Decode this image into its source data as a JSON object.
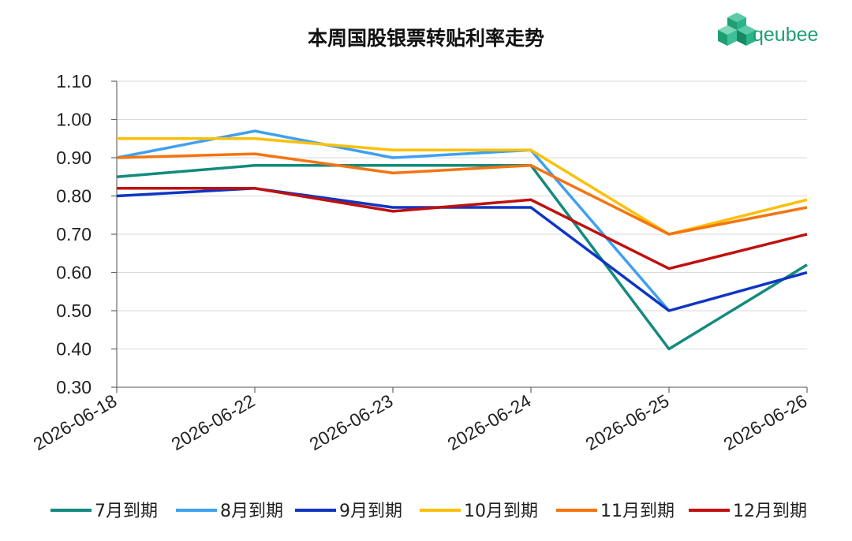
{
  "logo": {
    "text": "qeubee",
    "color": "#1f9e74"
  },
  "chart_data": {
    "type": "line",
    "title": "本周国股银票转贴利率走势",
    "xlabel": "",
    "ylabel": "",
    "categories": [
      "2026-06-18",
      "2026-06-22",
      "2026-06-23",
      "2026-06-24",
      "2026-06-25",
      "2026-06-26"
    ],
    "ylim": [
      0.3,
      1.1
    ],
    "yticks": [
      "0.30",
      "0.40",
      "0.50",
      "0.60",
      "0.70",
      "0.80",
      "0.90",
      "1.00",
      "1.10"
    ],
    "grid": true,
    "legend_position": "bottom",
    "series": [
      {
        "name": "7月到期",
        "color": "#138a7e",
        "values": [
          0.85,
          0.88,
          0.88,
          0.88,
          0.4,
          0.62
        ]
      },
      {
        "name": "8月到期",
        "color": "#3fa0f0",
        "values": [
          0.9,
          0.97,
          0.9,
          0.92,
          0.5,
          null
        ]
      },
      {
        "name": "9月到期",
        "color": "#0f35c4",
        "values": [
          0.8,
          0.82,
          0.77,
          0.77,
          0.5,
          0.6
        ]
      },
      {
        "name": "10月到期",
        "color": "#fbc00a",
        "values": [
          0.95,
          0.95,
          0.92,
          0.92,
          0.7,
          0.79
        ]
      },
      {
        "name": "11月到期",
        "color": "#f57410",
        "values": [
          0.9,
          0.91,
          0.86,
          0.88,
          0.7,
          0.77
        ]
      },
      {
        "name": "12月到期",
        "color": "#c0100e",
        "values": [
          0.82,
          0.82,
          0.76,
          0.79,
          0.61,
          0.7
        ]
      }
    ]
  }
}
